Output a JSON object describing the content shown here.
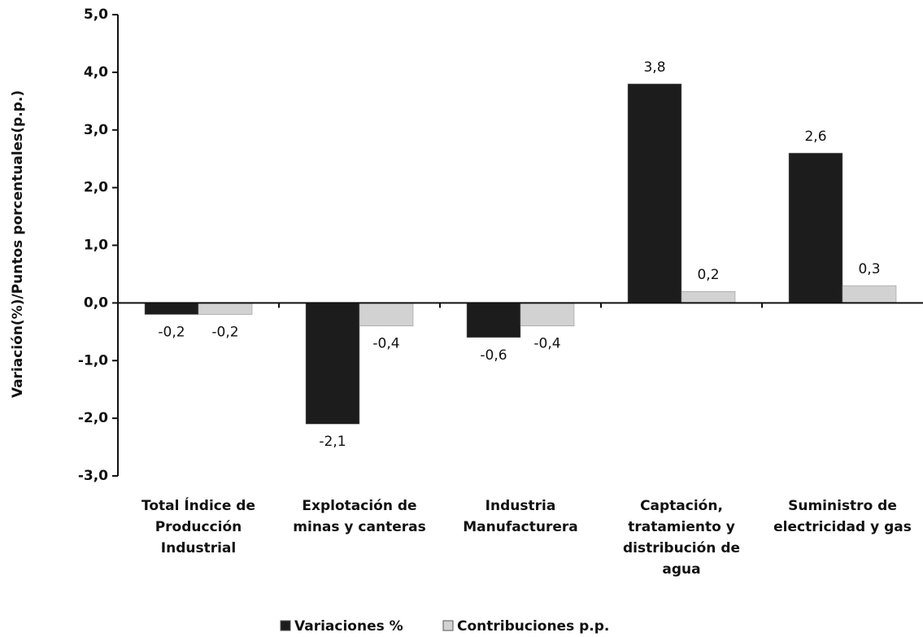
{
  "chart_data": {
    "type": "bar",
    "ylabel": "Variación(%)/Puntos porcentuales(p.p.)",
    "categories": [
      "Total Índice de Producción Industrial",
      "Explotación de minas y canteras",
      "Industria Manufacturera",
      "Captación, tratamiento y distribución de agua",
      "Suministro de electricidad y gas"
    ],
    "series": [
      {
        "name": "Variaciones %",
        "color": "#1c1c1c",
        "values": [
          -0.2,
          -2.1,
          -0.6,
          3.8,
          2.6
        ],
        "value_labels": [
          "-0,2",
          "-2,1",
          "-0,6",
          "3,8",
          "2,6"
        ]
      },
      {
        "name": "Contribuciones p.p.",
        "color": "#d2d2d2",
        "values": [
          -0.2,
          -0.4,
          -0.4,
          0.2,
          0.3
        ],
        "value_labels": [
          "-0,2",
          "-0,4",
          "-0,4",
          "0,2",
          "0,3"
        ]
      }
    ],
    "ylim": [
      -3,
      5
    ],
    "yticks": [
      {
        "value": -3,
        "label": "-3,0"
      },
      {
        "value": -2,
        "label": "-2,0"
      },
      {
        "value": -1,
        "label": "-1,0"
      },
      {
        "value": 0,
        "label": "0,0"
      },
      {
        "value": 1,
        "label": "1,0"
      },
      {
        "value": 2,
        "label": "2,0"
      },
      {
        "value": 3,
        "label": "3,0"
      },
      {
        "value": 4,
        "label": "4,0"
      },
      {
        "value": 5,
        "label": "5,0"
      }
    ],
    "legend": "bottom",
    "grid": false
  }
}
